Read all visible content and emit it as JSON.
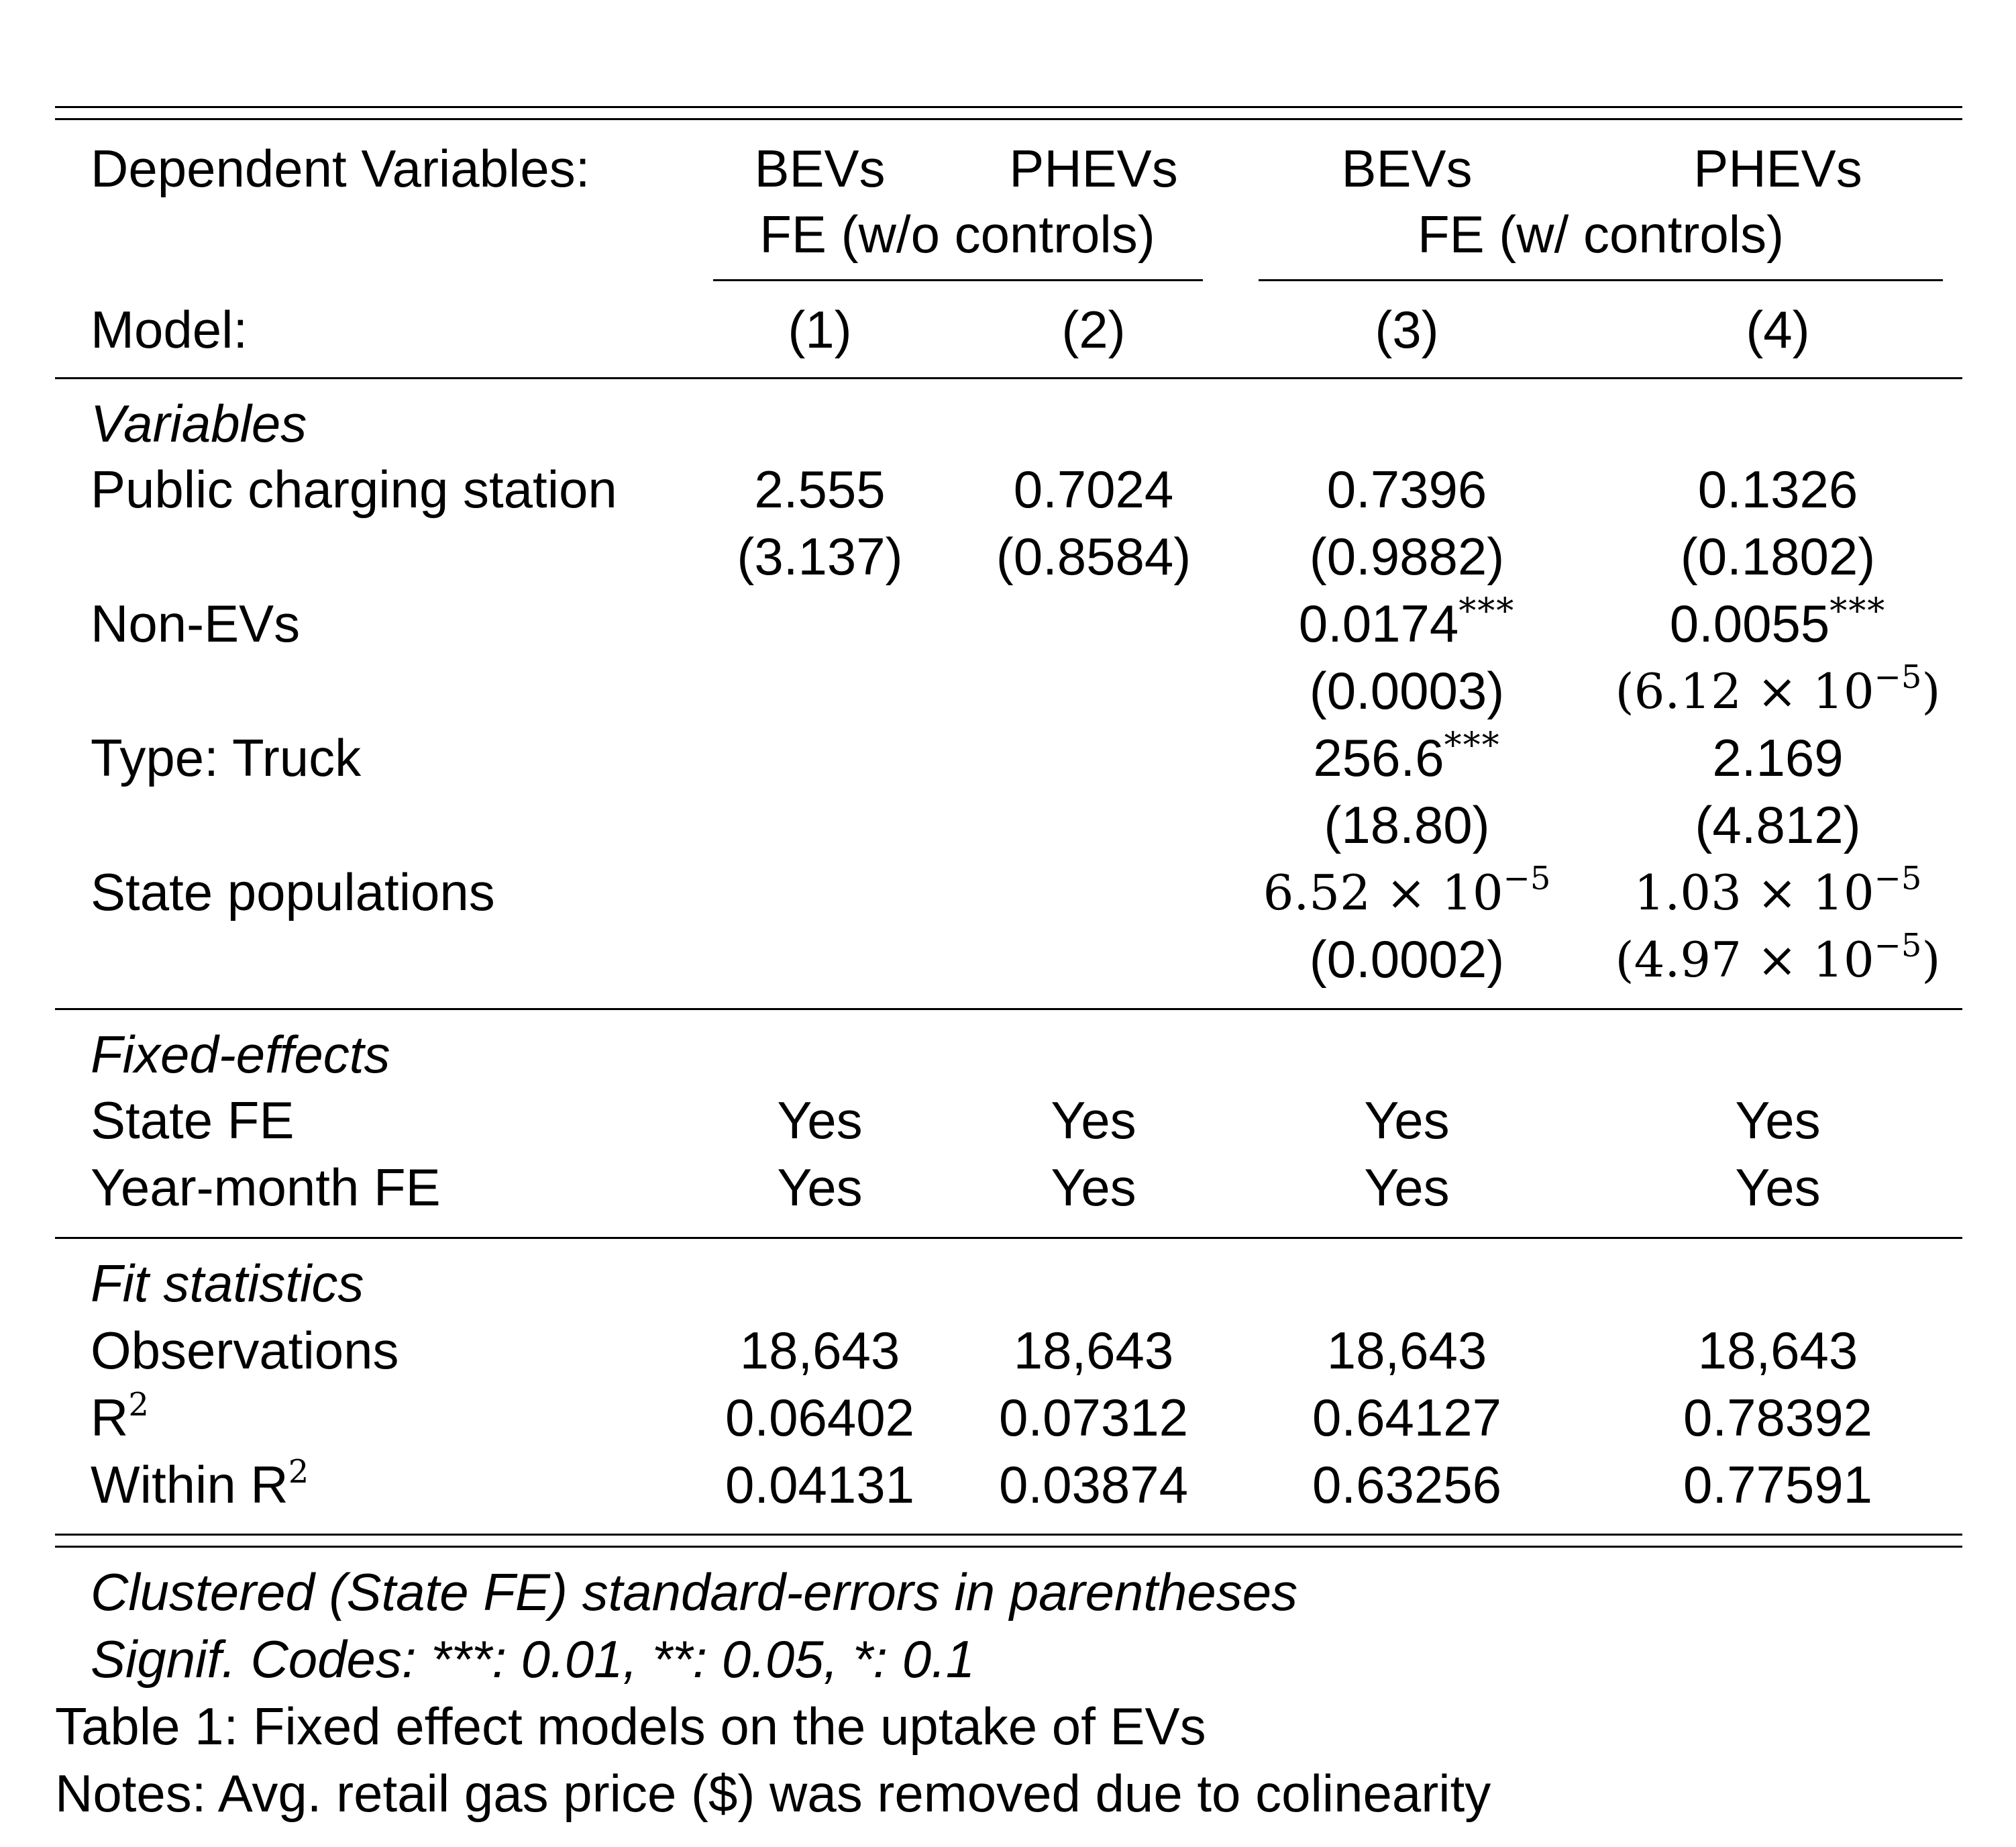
{
  "header": {
    "dependent_label": "Dependent Variables:",
    "dependent": [
      "BEVs",
      "PHEVs",
      "BEVs",
      "PHEVs"
    ],
    "group1": "FE (w/o controls)",
    "group2": "FE (w/ controls)",
    "model_label": "Model:",
    "models": [
      "(1)",
      "(2)",
      "(3)",
      "(4)"
    ]
  },
  "sections": {
    "variables": "Variables",
    "fixed_effects": "Fixed-effects",
    "fit": "Fit statistics"
  },
  "variables": {
    "charging": {
      "label": "Public charging station",
      "coef": [
        "2.555",
        "0.7024",
        "0.7396",
        "0.1326"
      ],
      "se": [
        "(3.137)",
        "(0.8584)",
        "(0.9882)",
        "(0.1802)"
      ]
    },
    "nonev": {
      "label": "Non-EVs",
      "coef3": "0.0174",
      "coef3_stars": "***",
      "coef4": "0.0055",
      "coef4_stars": "***",
      "se3": "(0.0003)",
      "se4_open": "(6.12 × 10",
      "se4_exp": "−5",
      "se4_close": ")"
    },
    "truck": {
      "label": "Type: Truck",
      "coef3": "256.6",
      "coef3_stars": "***",
      "coef4": "2.169",
      "se3": "(18.80)",
      "se4": "(4.812)"
    },
    "pop": {
      "label": "State populations",
      "coef3_base": "6.52 × 10",
      "coef3_exp": "−5",
      "coef4_base": "1.03 × 10",
      "coef4_exp": "−5",
      "se3": "(0.0002)",
      "se4_open": "(4.97 × 10",
      "se4_exp": "−5",
      "se4_close": ")"
    }
  },
  "fixed_effects": {
    "state": {
      "label": "State FE",
      "values": [
        "Yes",
        "Yes",
        "Yes",
        "Yes"
      ]
    },
    "yearmonth": {
      "label": "Year-month FE",
      "values": [
        "Yes",
        "Yes",
        "Yes",
        "Yes"
      ]
    }
  },
  "fit": {
    "obs": {
      "label": "Observations",
      "values": [
        "18,643",
        "18,643",
        "18,643",
        "18,643"
      ]
    },
    "r2": {
      "label": "R",
      "sup": "2",
      "values": [
        "0.06402",
        "0.07312",
        "0.64127",
        "0.78392"
      ]
    },
    "wr2": {
      "label": "Within R",
      "sup": "2",
      "values": [
        "0.04131",
        "0.03874",
        "0.63256",
        "0.77591"
      ]
    }
  },
  "notes": {
    "clustered": "Clustered (State FE) standard-errors in parentheses",
    "signif": "Signif. Codes: ***: 0.01, **: 0.05, *: 0.1",
    "caption": "Table 1: Fixed effect models on the uptake of EVs",
    "remark": "Notes: Avg. retail gas price ($) was removed due to colinearity"
  }
}
